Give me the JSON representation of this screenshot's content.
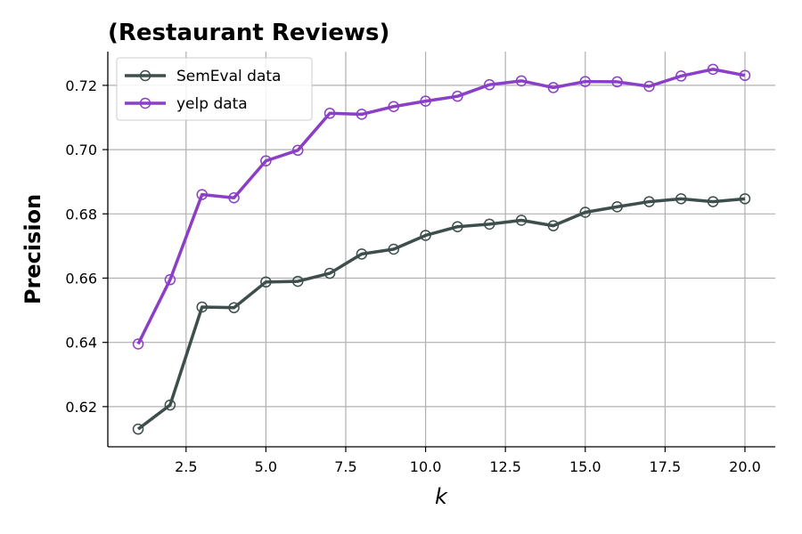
{
  "chart_data": {
    "type": "line",
    "title": "(Restaurant Reviews)",
    "xlabel": "k",
    "ylabel": "Precision",
    "x": [
      1,
      2,
      3,
      4,
      5,
      6,
      7,
      8,
      9,
      10,
      11,
      12,
      13,
      14,
      15,
      16,
      17,
      18,
      19,
      20
    ],
    "xlim": [
      0.05,
      20.95
    ],
    "ylim": [
      0.6075,
      0.7305
    ],
    "xticks": [
      2.5,
      5.0,
      7.5,
      10.0,
      12.5,
      15.0,
      17.5,
      20.0
    ],
    "xtick_labels": [
      "2.5",
      "5.0",
      "7.5",
      "10.0",
      "12.5",
      "15.0",
      "17.5",
      "20.0"
    ],
    "yticks": [
      0.62,
      0.64,
      0.66,
      0.68,
      0.7,
      0.72
    ],
    "ytick_labels": [
      "0.62",
      "0.64",
      "0.66",
      "0.68",
      "0.70",
      "0.72"
    ],
    "grid": true,
    "legend_position": "top-left",
    "series": [
      {
        "name": "SemEval data",
        "color": "#3d4e4c",
        "marker": "hollow-circle",
        "values": [
          0.613,
          0.6205,
          0.651,
          0.6508,
          0.6588,
          0.659,
          0.6615,
          0.6675,
          0.669,
          0.6733,
          0.676,
          0.6768,
          0.678,
          0.6763,
          0.6805,
          0.6822,
          0.6838,
          0.6847,
          0.6838,
          0.6847
        ]
      },
      {
        "name": "yelp data",
        "color": "#8b3fc7",
        "marker": "hollow-circle",
        "values": [
          0.6395,
          0.6595,
          0.686,
          0.685,
          0.6965,
          0.6998,
          0.7113,
          0.711,
          0.7134,
          0.7151,
          0.7166,
          0.7202,
          0.7214,
          0.7193,
          0.7212,
          0.7211,
          0.7197,
          0.7229,
          0.725,
          0.7231
        ]
      }
    ]
  }
}
